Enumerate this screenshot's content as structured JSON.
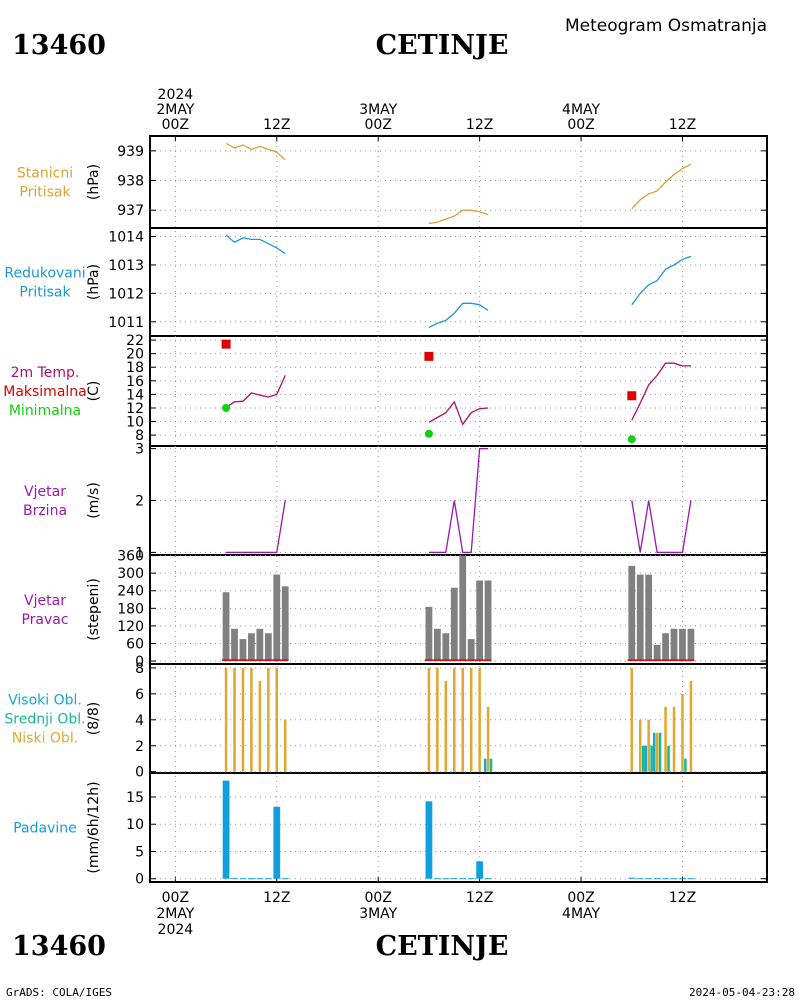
{
  "header": {
    "station_id": "13460",
    "station_name": "CETINJE",
    "subtitle": "Meteogram Osmatranja"
  },
  "footer": {
    "credit": "GrADS: COLA/IGES",
    "timestamp": "2024-05-04-23:28"
  },
  "colors": {
    "pressure": "#e0a030",
    "reduced": "#1a9ad0",
    "temp": "#b0106a",
    "tmax": "#e00000",
    "tmin": "#10d010",
    "wind": "#9a18b0",
    "bars": "#808080",
    "high_cloud": "#18a8d0",
    "mid_cloud": "#18b890",
    "low_cloud": "#e0a830",
    "precip": "#10a0e0",
    "grid": "#999999"
  },
  "chart_data": {
    "type": "line",
    "time_axis": {
      "top_labels": [
        {
          "time": 0,
          "lines": [
            "2024",
            "2MAY",
            "00Z"
          ]
        },
        {
          "time": 12,
          "lines": [
            "12Z"
          ]
        },
        {
          "time": 24,
          "lines": [
            "3MAY",
            "00Z"
          ]
        },
        {
          "time": 36,
          "lines": [
            "12Z"
          ]
        },
        {
          "time": 48,
          "lines": [
            "4MAY",
            "00Z"
          ]
        },
        {
          "time": 60,
          "lines": [
            "12Z"
          ]
        }
      ],
      "bottom_labels": [
        {
          "time": 0,
          "lines": [
            "00Z",
            "2MAY",
            "2024"
          ]
        },
        {
          "time": 12,
          "lines": [
            "12Z"
          ]
        },
        {
          "time": 24,
          "lines": [
            "00Z",
            "3MAY"
          ]
        },
        {
          "time": 36,
          "lines": [
            "12Z"
          ]
        },
        {
          "time": 48,
          "lines": [
            "00Z",
            "4MAY"
          ]
        },
        {
          "time": 60,
          "lines": [
            "12Z"
          ]
        }
      ],
      "range_hours": [
        -3,
        70
      ]
    },
    "panels": [
      {
        "id": "station-pressure",
        "labels": [
          {
            "text": "Stanicni",
            "color": "#e0a030"
          },
          {
            "text": "Pritisak",
            "color": "#e0a030"
          }
        ],
        "unit": "(hPa)",
        "ylim": [
          936.4,
          939.5
        ],
        "yticks": [
          937,
          938,
          939
        ],
        "series": [
          {
            "name": "",
            "kind": "line",
            "color": "#e0a030",
            "segments": [
              {
                "x": [
                  6,
                  7,
                  8,
                  9,
                  10,
                  11,
                  12,
                  13
                ],
                "y": [
                  939.25,
                  939.1,
                  939.2,
                  939.05,
                  939.15,
                  939.05,
                  938.95,
                  938.7
                ]
              },
              {
                "x": [
                  30,
                  31,
                  32,
                  33,
                  34,
                  35,
                  36,
                  37
                ],
                "y": [
                  936.55,
                  936.6,
                  936.7,
                  936.8,
                  937.0,
                  937.0,
                  936.95,
                  936.85
                ]
              },
              {
                "x": [
                  54,
                  55,
                  56,
                  57,
                  58,
                  59,
                  60,
                  61
                ],
                "y": [
                  937.05,
                  937.35,
                  937.55,
                  937.65,
                  937.95,
                  938.2,
                  938.4,
                  938.55
                ]
              }
            ]
          }
        ]
      },
      {
        "id": "reduced-pressure",
        "labels": [
          {
            "text": "Redukovani",
            "color": "#1a9ad0"
          },
          {
            "text": "Pritisak",
            "color": "#1a9ad0"
          }
        ],
        "unit": "(hPa)",
        "ylim": [
          1010.5,
          1014.3
        ],
        "yticks": [
          1011,
          1012,
          1013,
          1014
        ],
        "series": [
          {
            "name": "",
            "kind": "line",
            "color": "#1a9ad0",
            "segments": [
              {
                "x": [
                  6,
                  7,
                  8,
                  9,
                  10,
                  11,
                  12,
                  13
                ],
                "y": [
                  1014.05,
                  1013.8,
                  1013.95,
                  1013.9,
                  1013.9,
                  1013.75,
                  1013.6,
                  1013.4
                ]
              },
              {
                "x": [
                  30,
                  31,
                  32,
                  33,
                  34,
                  35,
                  36,
                  37
                ],
                "y": [
                  1010.8,
                  1010.95,
                  1011.05,
                  1011.3,
                  1011.65,
                  1011.65,
                  1011.6,
                  1011.4
                ]
              },
              {
                "x": [
                  54,
                  55,
                  56,
                  57,
                  58,
                  59,
                  60,
                  61
                ],
                "y": [
                  1011.6,
                  1012.0,
                  1012.3,
                  1012.45,
                  1012.85,
                  1013.0,
                  1013.2,
                  1013.3
                ]
              }
            ]
          }
        ]
      },
      {
        "id": "temperature",
        "labels": [
          {
            "text": "2m Temp.",
            "color": "#b0106a"
          },
          {
            "text": "Maksimalna",
            "color": "#e00000"
          },
          {
            "text": "Minimalna",
            "color": "#10d010"
          }
        ],
        "unit": "(C)",
        "ylim": [
          6.4,
          22.6
        ],
        "yticks": [
          8,
          10,
          12,
          14,
          16,
          18,
          20,
          22
        ],
        "series": [
          {
            "name": "",
            "kind": "line",
            "color": "#b0106a",
            "segments": [
              {
                "x": [
                  6,
                  7,
                  8,
                  9,
                  10,
                  11,
                  12,
                  13
                ],
                "y": [
                  12.1,
                  12.9,
                  13.0,
                  14.2,
                  13.9,
                  13.6,
                  14.0,
                  16.8
                ]
              },
              {
                "x": [
                  30,
                  31,
                  32,
                  33,
                  34,
                  35,
                  36,
                  37
                ],
                "y": [
                  9.9,
                  10.6,
                  11.3,
                  12.9,
                  9.6,
                  11.3,
                  11.9,
                  12.0
                ]
              },
              {
                "x": [
                  54,
                  55,
                  56,
                  57,
                  58,
                  59,
                  60,
                  61
                ],
                "y": [
                  10.2,
                  12.7,
                  15.4,
                  16.8,
                  18.6,
                  18.6,
                  18.2,
                  18.2
                ]
              }
            ]
          },
          {
            "name": "",
            "kind": "square",
            "color": "#e00000",
            "x": [
              6,
              30,
              54
            ],
            "y": [
              21.4,
              19.6,
              13.8
            ]
          },
          {
            "name": "",
            "kind": "dot",
            "color": "#10d010",
            "x": [
              6,
              30,
              54
            ],
            "y": [
              12.0,
              8.2,
              7.4
            ]
          }
        ]
      },
      {
        "id": "wind-speed",
        "labels": [
          {
            "text": "Vjetar",
            "color": "#9a18b0"
          },
          {
            "text": "Brzina",
            "color": "#9a18b0"
          }
        ],
        "unit": "(m/s)",
        "ylim": [
          0.95,
          3.05
        ],
        "yticks": [
          1,
          2,
          3
        ],
        "series": [
          {
            "name": "",
            "kind": "step",
            "color": "#9a18b0",
            "segments": [
              {
                "x": [
                  6,
                  7,
                  8,
                  9,
                  10,
                  11,
                  12,
                  13
                ],
                "y": [
                  1,
                  1,
                  1,
                  1,
                  1,
                  1,
                  1,
                  2
                ]
              },
              {
                "x": [
                  30,
                  31,
                  32,
                  33,
                  34,
                  35,
                  36,
                  37
                ],
                "y": [
                  1,
                  1,
                  1,
                  2,
                  1,
                  1,
                  3,
                  3
                ]
              },
              {
                "x": [
                  54,
                  55,
                  56,
                  57,
                  58,
                  59,
                  60,
                  61
                ],
                "y": [
                  2,
                  1,
                  2,
                  1,
                  1,
                  1,
                  1,
                  2
                ]
              }
            ]
          }
        ]
      },
      {
        "id": "wind-direction",
        "labels": [
          {
            "text": "Vjetar",
            "color": "#9a18b0"
          },
          {
            "text": "Pravac",
            "color": "#9a18b0"
          }
        ],
        "unit": "(stepeni)",
        "ylim": [
          -10,
          362
        ],
        "yticks": [
          0,
          60,
          120,
          180,
          240,
          300,
          360
        ],
        "series": [
          {
            "name": "",
            "kind": "bar",
            "color": "#808080",
            "width": 0.8,
            "x": [
              6,
              7,
              8,
              9,
              10,
              11,
              12,
              13,
              30,
              31,
              32,
              33,
              34,
              35,
              36,
              37,
              54,
              55,
              56,
              57,
              58,
              59,
              60,
              61
            ],
            "y": [
              235,
              110,
              75,
              95,
              110,
              95,
              295,
              255,
              185,
              110,
              95,
              250,
              360,
              75,
              275,
              275,
              325,
              295,
              295,
              55,
              95,
              110,
              110,
              110
            ]
          },
          {
            "name": "",
            "kind": "baseline",
            "color": "#e00000",
            "segments": [
              [
                6,
                13.4
              ],
              [
                30,
                37.4
              ],
              [
                54,
                61.4
              ]
            ]
          }
        ]
      },
      {
        "id": "clouds",
        "labels": [
          {
            "text": "Visoki Obl.",
            "color": "#18a8d0"
          },
          {
            "text": "Srednji Obl.",
            "color": "#18b890"
          },
          {
            "text": "Niski Obl.",
            "color": "#e0a830"
          }
        ],
        "unit": "(8/8)",
        "ylim": [
          -0.1,
          8.3
        ],
        "yticks": [
          0,
          2,
          4,
          6,
          8
        ],
        "series": [
          {
            "name": "",
            "kind": "bar",
            "color": "#e0a830",
            "width": 0.3,
            "offset": 0.0,
            "x": [
              6,
              7,
              8,
              9,
              10,
              11,
              12,
              13,
              30,
              31,
              32,
              33,
              34,
              35,
              36,
              37,
              54,
              55,
              56,
              57,
              58,
              59,
              60,
              61
            ],
            "y": [
              8,
              8,
              8,
              8,
              7,
              8,
              8,
              4,
              8,
              8,
              7,
              8,
              8,
              8,
              8,
              5,
              8,
              4,
              4,
              3,
              5,
              5,
              6,
              7
            ]
          },
          {
            "name": "",
            "kind": "bar",
            "color": "#18b890",
            "width": 0.3,
            "offset": 0.35,
            "x": [
              6,
              7,
              8,
              9,
              10,
              11,
              12,
              13,
              30,
              31,
              32,
              33,
              34,
              35,
              36,
              37,
              54,
              55,
              56,
              57,
              58,
              59,
              60,
              61
            ],
            "y": [
              0,
              0,
              0,
              0,
              0,
              0,
              0,
              0,
              0,
              0,
              0,
              0,
              0,
              0,
              0,
              1,
              0,
              2,
              2,
              3,
              2,
              0,
              1,
              0
            ]
          },
          {
            "name": "",
            "kind": "bar",
            "color": "#18a8d0",
            "width": 0.3,
            "offset": -0.35,
            "x": [
              6,
              7,
              8,
              9,
              10,
              11,
              12,
              13,
              30,
              31,
              32,
              33,
              34,
              35,
              36,
              37,
              54,
              55,
              56,
              57,
              58,
              59,
              60,
              61
            ],
            "y": [
              0,
              0,
              0,
              0,
              0,
              0,
              0,
              0,
              0,
              0,
              0,
              0,
              0,
              0,
              0,
              1,
              0,
              0,
              2,
              3,
              0,
              0,
              0,
              0
            ]
          }
        ]
      },
      {
        "id": "precipitation",
        "labels": [
          {
            "text": "Padavine",
            "color": "#10a0e0"
          }
        ],
        "unit": "(mm/6h/12h)",
        "ylim": [
          -0.6,
          19.4
        ],
        "yticks": [
          0,
          5,
          10,
          15
        ],
        "series": [
          {
            "name": "",
            "kind": "bar",
            "color": "#10a0e0",
            "width": 0.8,
            "x": [
              6,
              7,
              8,
              9,
              10,
              11,
              12,
              13,
              30,
              31,
              32,
              33,
              34,
              35,
              36,
              37,
              54,
              55,
              56,
              57,
              58,
              59,
              60,
              61
            ],
            "y": [
              18,
              0.1,
              0.1,
              0.1,
              0.1,
              0.1,
              13.2,
              0.1,
              14.2,
              0.1,
              0.1,
              0.1,
              0.1,
              0.1,
              3.2,
              0.1,
              0.2,
              0.1,
              0.1,
              0.1,
              0.1,
              0.1,
              0.1,
              0.1
            ]
          }
        ]
      }
    ]
  }
}
